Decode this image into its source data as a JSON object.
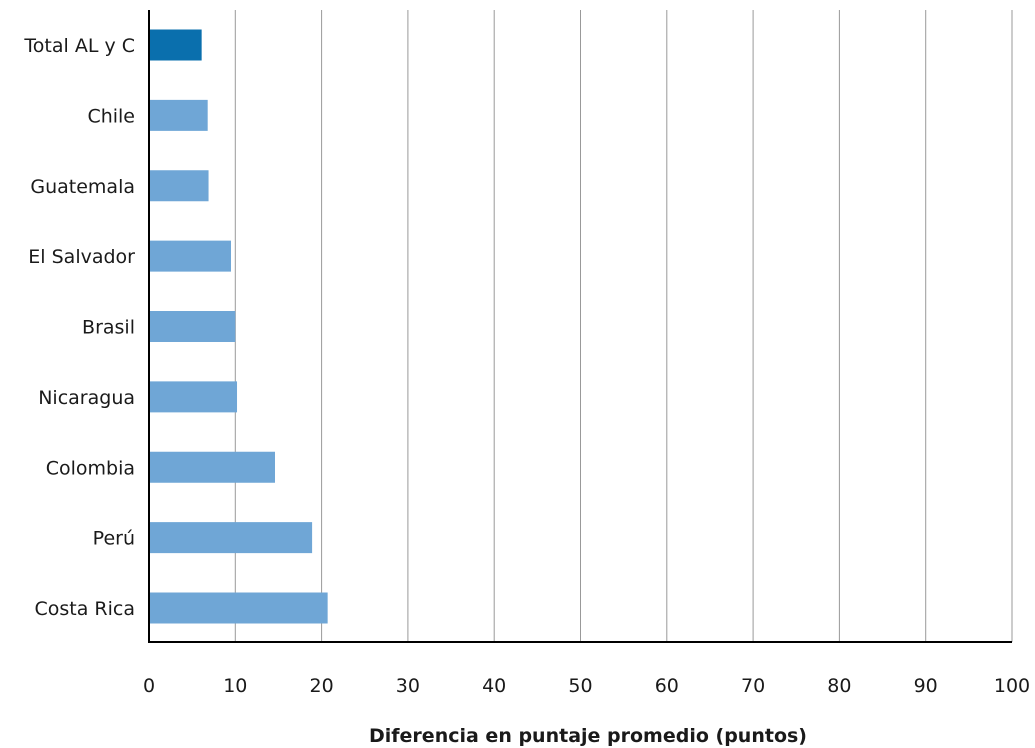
{
  "chart_data": {
    "type": "bar",
    "orientation": "horizontal",
    "categories": [
      "Total AL y C",
      "Chile",
      "Guatemala",
      "El Salvador",
      "Brasil",
      "Nicaragua",
      "Colombia",
      "Perú",
      "Costa Rica"
    ],
    "values": [
      6.1,
      6.8,
      6.9,
      9.5,
      10.0,
      10.2,
      14.6,
      18.9,
      20.7
    ],
    "xlabel": "Diferencia en puntaje promedio (puntos)",
    "ylabel": "",
    "xlim": [
      0,
      100
    ],
    "xticks": [
      "0",
      "10",
      "20",
      "30",
      "40",
      "50",
      "60",
      "70",
      "80",
      "90",
      "100"
    ],
    "grid": "vertical",
    "legend": "none",
    "colors": {
      "highlight": "#0a6fad",
      "bar": "#6fa6d6",
      "grid": "#999999",
      "axis": "#000000"
    },
    "highlight_index": 0
  }
}
